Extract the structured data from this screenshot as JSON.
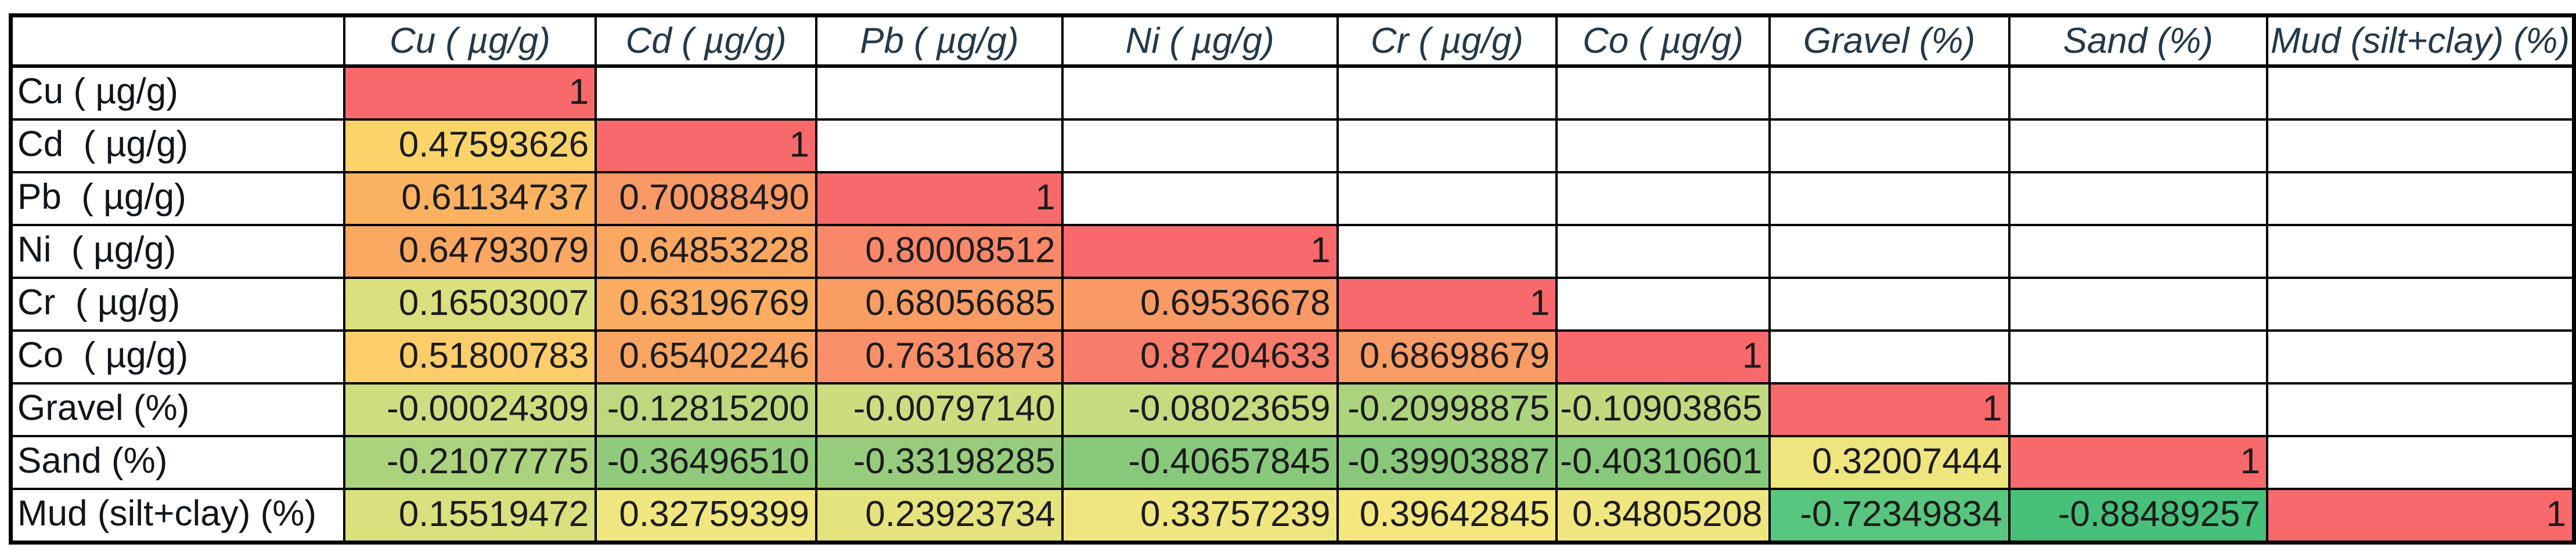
{
  "table": {
    "corner_label": "",
    "col_headers": [
      "Cu ( µg/g)",
      "Cd ( µg/g)",
      "Pb ( µg/g)",
      "Ni ( µg/g)",
      "Cr ( µg/g)",
      "Co ( µg/g)",
      "Gravel (%)",
      "Sand (%)",
      "Mud (silt+clay) (%)"
    ],
    "rows": [
      {
        "label": "Cu ( µg/g)",
        "cells": [
          {
            "t": "1",
            "bg": "#F8696B"
          }
        ]
      },
      {
        "label": "Cd  ( µg/g)",
        "cells": [
          {
            "t": "0.47593626",
            "bg": "#FAD469"
          },
          {
            "t": "1",
            "bg": "#F8696B"
          }
        ]
      },
      {
        "label": "Pb  ( µg/g)",
        "cells": [
          {
            "t": "0.61134737",
            "bg": "#FAB260"
          },
          {
            "t": "0.70088490",
            "bg": "#F99966"
          },
          {
            "t": "1",
            "bg": "#F8696B"
          }
        ]
      },
      {
        "label": "Ni  ( µg/g)",
        "cells": [
          {
            "t": "0.64793079",
            "bg": "#FAA762"
          },
          {
            "t": "0.64853228",
            "bg": "#FAA762"
          },
          {
            "t": "0.80008512",
            "bg": "#F9886A"
          },
          {
            "t": "1",
            "bg": "#F8696B"
          }
        ]
      },
      {
        "label": "Cr  ( µg/g)",
        "cells": [
          {
            "t": "0.16503007",
            "bg": "#DBE07E"
          },
          {
            "t": "0.63196769",
            "bg": "#FAAC61"
          },
          {
            "t": "0.68056685",
            "bg": "#F99D65"
          },
          {
            "t": "0.69536678",
            "bg": "#F99A66"
          },
          {
            "t": "1",
            "bg": "#F8696B"
          }
        ]
      },
      {
        "label": "Co  ( µg/g)",
        "cells": [
          {
            "t": "0.51800783",
            "bg": "#FBCD6B"
          },
          {
            "t": "0.65402246",
            "bg": "#FAA563"
          },
          {
            "t": "0.76316873",
            "bg": "#F98F68"
          },
          {
            "t": "0.87204633",
            "bg": "#F87C6B"
          },
          {
            "t": "0.68698679",
            "bg": "#F99C65"
          },
          {
            "t": "1",
            "bg": "#F8696B"
          }
        ]
      },
      {
        "label": "Gravel (%)",
        "cells": [
          {
            "t": "-0.00024309",
            "bg": "#CFDC80"
          },
          {
            "t": "-0.12815200",
            "bg": "#BED87F"
          },
          {
            "t": "-0.00797140",
            "bg": "#CEDC80"
          },
          {
            "t": "-0.08023659",
            "bg": "#C6DA7F"
          },
          {
            "t": "-0.20998875",
            "bg": "#ACD37D"
          },
          {
            "t": "-0.10903865",
            "bg": "#C2D97F"
          },
          {
            "t": "1",
            "bg": "#F8696B"
          }
        ]
      },
      {
        "label": "Sand (%)",
        "cells": [
          {
            "t": "-0.21077775",
            "bg": "#ABD37D"
          },
          {
            "t": "-0.36496510",
            "bg": "#90CA7B"
          },
          {
            "t": "-0.33198285",
            "bg": "#97CC7C"
          },
          {
            "t": "-0.40657845",
            "bg": "#88C87B"
          },
          {
            "t": "-0.39903887",
            "bg": "#89C87B"
          },
          {
            "t": "-0.40310601",
            "bg": "#88C87B"
          },
          {
            "t": "0.32007444",
            "bg": "#EEE57E"
          },
          {
            "t": "1",
            "bg": "#F8696B"
          }
        ]
      },
      {
        "label": "Mud (silt+clay) (%)",
        "cells": [
          {
            "t": "0.15519472",
            "bg": "#DAE07E"
          },
          {
            "t": "0.32759399",
            "bg": "#EFE67F"
          },
          {
            "t": "0.23923734",
            "bg": "#E5E37E"
          },
          {
            "t": "0.33757239",
            "bg": "#F0E67F"
          },
          {
            "t": "0.39642845",
            "bg": "#F4E77E"
          },
          {
            "t": "0.34805208",
            "bg": "#F0E67F"
          },
          {
            "t": "-0.72349834",
            "bg": "#58C67E"
          },
          {
            "t": "-0.88489257",
            "bg": "#47C17A"
          },
          {
            "t": "1",
            "bg": "#F8696B"
          }
        ]
      }
    ]
  },
  "color_scale": {
    "max_color": "#F8696B",
    "mid_color": "#FFEB84",
    "min_color": "#47C17A",
    "grid_color": "#000000",
    "header_text_color": "#24384A",
    "cell_text_color": "#1B1B1B"
  },
  "chart_data": {
    "type": "heatmap",
    "title": "",
    "columns": [
      "Cu ( µg/g)",
      "Cd ( µg/g)",
      "Pb ( µg/g)",
      "Ni ( µg/g)",
      "Cr ( µg/g)",
      "Co ( µg/g)",
      "Gravel (%)",
      "Sand (%)",
      "Mud (silt+clay) (%)"
    ],
    "rows": [
      "Cu ( µg/g)",
      "Cd ( µg/g)",
      "Pb ( µg/g)",
      "Ni ( µg/g)",
      "Cr ( µg/g)",
      "Co ( µg/g)",
      "Gravel (%)",
      "Sand (%)",
      "Mud (silt+clay) (%)"
    ],
    "matrix": [
      [
        1,
        null,
        null,
        null,
        null,
        null,
        null,
        null,
        null
      ],
      [
        0.47593626,
        1,
        null,
        null,
        null,
        null,
        null,
        null,
        null
      ],
      [
        0.61134737,
        0.7008849,
        1,
        null,
        null,
        null,
        null,
        null,
        null
      ],
      [
        0.64793079,
        0.64853228,
        0.80008512,
        1,
        null,
        null,
        null,
        null,
        null
      ],
      [
        0.16503007,
        0.63196769,
        0.68056685,
        0.69536678,
        1,
        null,
        null,
        null,
        null
      ],
      [
        0.51800783,
        0.65402246,
        0.76316873,
        0.87204633,
        0.68698679,
        1,
        null,
        null,
        null
      ],
      [
        -0.00024309,
        -0.128152,
        -0.0079714,
        -0.08023659,
        -0.20998875,
        -0.10903865,
        1,
        null,
        null
      ],
      [
        -0.21077775,
        -0.3649651,
        -0.33198285,
        -0.40657845,
        -0.39903887,
        -0.40310601,
        0.32007444,
        1,
        null
      ],
      [
        0.15519472,
        0.32759399,
        0.23923734,
        0.33757239,
        0.39642845,
        0.34805208,
        -0.72349834,
        -0.88489257,
        1
      ]
    ],
    "value_range": [
      -0.88489257,
      1
    ],
    "legend": "none",
    "grid": true,
    "layout": "lower-triangular correlation matrix with 3-color scale (green=min, yellow=mid, red=max)"
  }
}
